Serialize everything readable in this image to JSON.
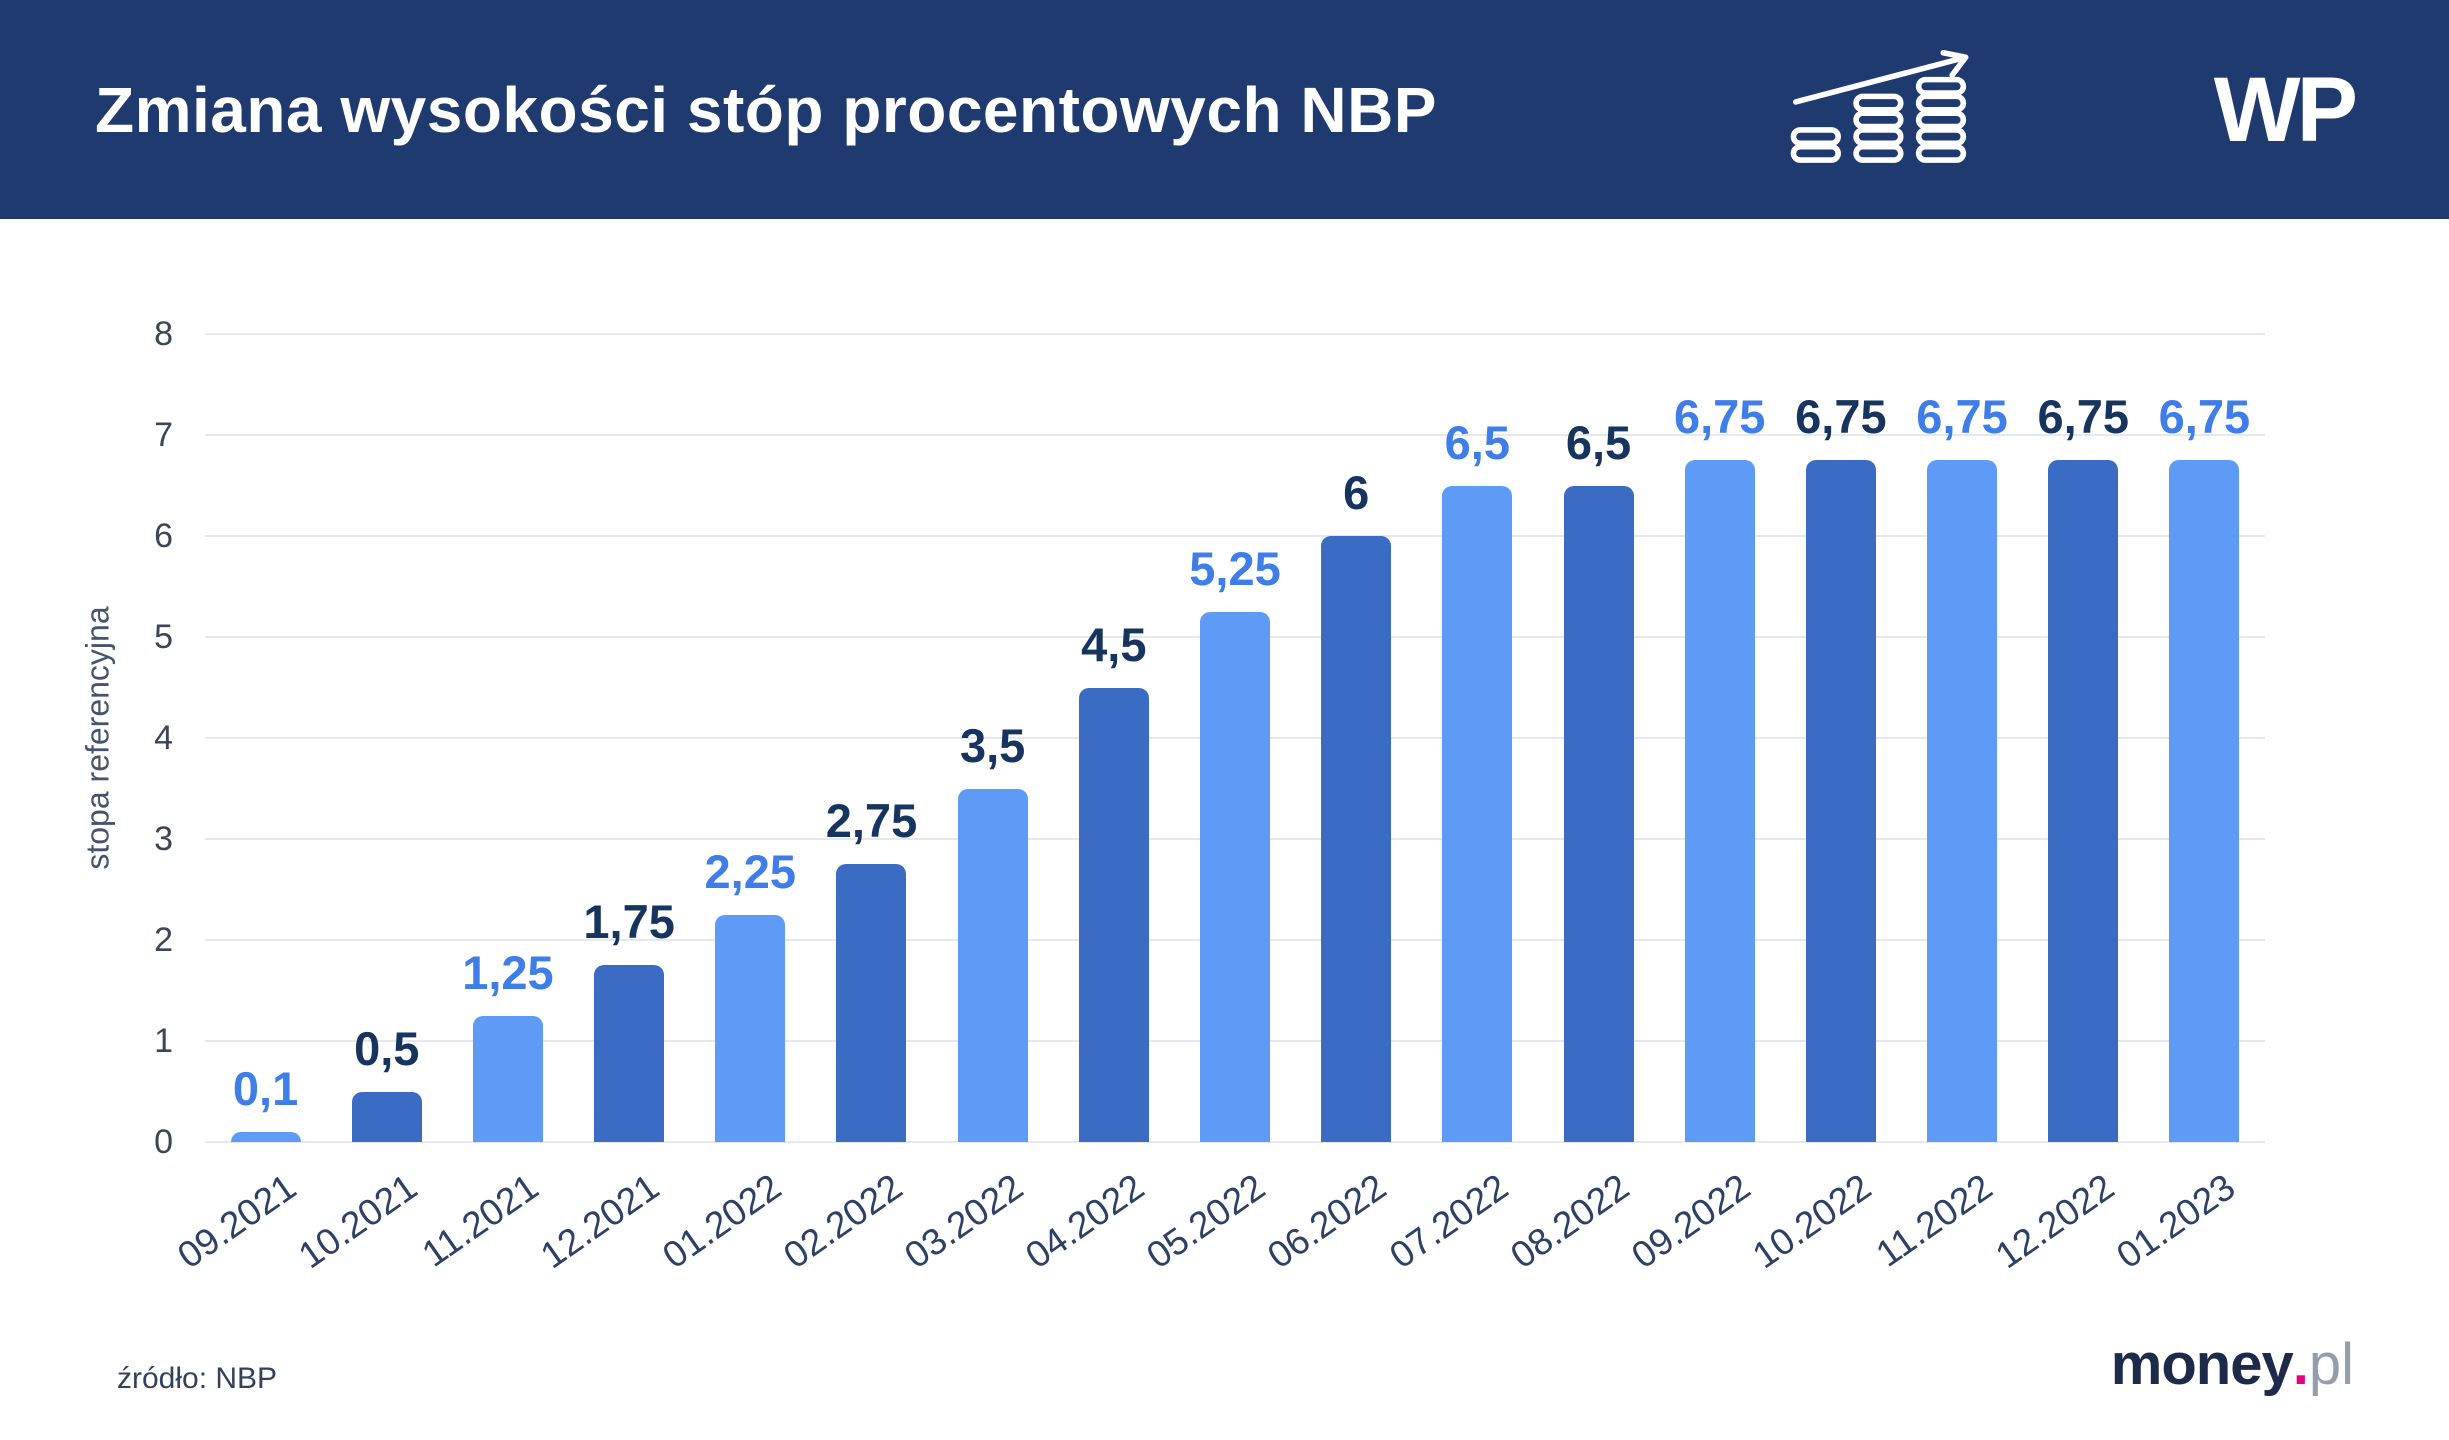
{
  "header": {
    "title": "Zmiana wysokości stóp procentowych NBP",
    "logo": "WP",
    "icon": "coins-growth-icon"
  },
  "footer": {
    "source": "źródło: NBP",
    "brand": {
      "money": "money",
      "dot": ".",
      "pl": "pl"
    }
  },
  "colors": {
    "background": "#ffffff",
    "header_bg": "#1e3a6e",
    "bar_light": "#5e9bf7",
    "bar_dark": "#3a6cc4",
    "label_light": "#3f7de8",
    "label_dark": "#16345e",
    "grid": "#e5e8ee",
    "tick_text": "#3a4556",
    "xlabel_text": "#2d4166",
    "brand_money": "#1e2a4a",
    "brand_dot": "#e6017e",
    "brand_pl": "#939dab"
  },
  "chart_data": {
    "type": "bar",
    "title": "Zmiana wysokości stóp procentowych NBP",
    "xlabel": "",
    "ylabel": "stopa referencyjna",
    "ylim": [
      0,
      8
    ],
    "yticks": [
      0,
      1,
      2,
      3,
      4,
      5,
      6,
      7,
      8
    ],
    "grid": "horizontal",
    "legend": "none",
    "categories": [
      "09.2021",
      "10.2021",
      "11.2021",
      "12.2021",
      "01.2022",
      "02.2022",
      "03.2022",
      "04.2022",
      "05.2022",
      "06.2022",
      "07.2022",
      "08.2022",
      "09.2022",
      "10.2022",
      "11.2022",
      "12.2022",
      "01.2023"
    ],
    "values": [
      0.1,
      0.5,
      1.25,
      1.75,
      2.25,
      2.75,
      3.5,
      4.5,
      5.25,
      6,
      6.5,
      6.5,
      6.75,
      6.75,
      6.75,
      6.75,
      6.75
    ],
    "value_labels": [
      "0,1",
      "0,5",
      "1,25",
      "1,75",
      "2,25",
      "2,75",
      "3,5",
      "4,5",
      "5,25",
      "6",
      "6,5",
      "6,5",
      "6,75",
      "6,75",
      "6,75",
      "6,75",
      "6,75"
    ],
    "bar_tones": [
      "light",
      "dark",
      "light",
      "dark",
      "light",
      "dark",
      "light",
      "dark",
      "light",
      "dark",
      "light",
      "dark",
      "light",
      "dark",
      "light",
      "dark",
      "light"
    ],
    "label_tones": [
      "light",
      "dark",
      "light",
      "dark",
      "light",
      "dark",
      "dark",
      "dark",
      "light",
      "dark",
      "light",
      "dark",
      "light",
      "dark",
      "light",
      "dark",
      "light"
    ],
    "source": "źródło: NBP"
  }
}
